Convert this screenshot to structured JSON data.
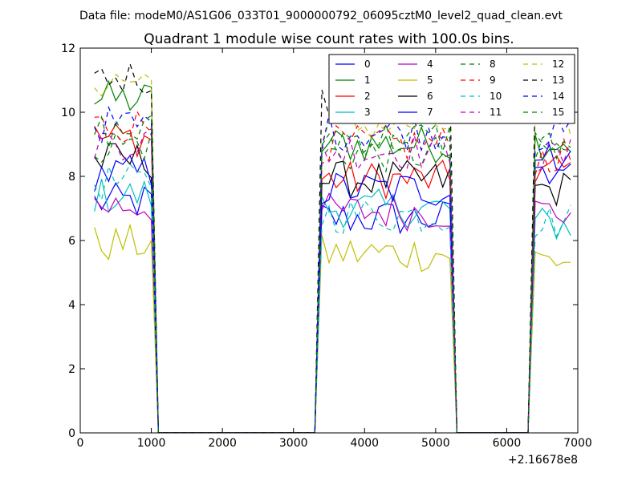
{
  "chart_data": {
    "type": "line",
    "suptitle": "Data file: modeM0/AS1G06_033T01_9000000792_06095cztM0_level2_quad_clean.evt",
    "title": "Quadrant 1 module wise count rates with 100.0s bins.",
    "xlabel": "",
    "ylabel": "",
    "x_offset_label": "+2.16678e8",
    "xlim": [
      0,
      7000
    ],
    "ylim": [
      0,
      12
    ],
    "xticks": [
      0,
      1000,
      2000,
      3000,
      4000,
      5000,
      6000,
      7000
    ],
    "xtick_labels": [
      "0",
      "1000",
      "2000",
      "3000",
      "4000",
      "5000",
      "6000",
      "7000"
    ],
    "yticks": [
      0,
      2,
      4,
      6,
      8,
      10,
      12
    ],
    "ytick_labels": [
      "0",
      "2",
      "4",
      "6",
      "8",
      "10",
      "12"
    ],
    "legend_position": "top-right",
    "segments": [
      {
        "x_start": 200,
        "x_end": 1000
      },
      {
        "x_start": 3400,
        "x_end": 5200
      },
      {
        "x_start": 6400,
        "x_end": 6900
      }
    ],
    "gap_ranges": [
      [
        1200,
        3300
      ],
      [
        5300,
        6300
      ]
    ],
    "series": [
      {
        "name": "0",
        "color": "#0000ff",
        "dashed": false,
        "levels": [
          7.2,
          6.7,
          8.6
        ]
      },
      {
        "name": "1",
        "color": "#008000",
        "dashed": false,
        "levels": [
          10.4,
          9.0,
          9.1
        ]
      },
      {
        "name": "2",
        "color": "#ff0000",
        "dashed": false,
        "levels": [
          9.2,
          7.9,
          8.2
        ]
      },
      {
        "name": "3",
        "color": "#00bfbf",
        "dashed": false,
        "levels": [
          7.4,
          7.0,
          6.5
        ]
      },
      {
        "name": "4",
        "color": "#bf00bf",
        "dashed": false,
        "levels": [
          7.1,
          6.9,
          6.9
        ]
      },
      {
        "name": "5",
        "color": "#bfbf00",
        "dashed": false,
        "levels": [
          5.9,
          5.6,
          5.4
        ]
      },
      {
        "name": "6",
        "color": "#000000",
        "dashed": false,
        "levels": [
          8.5,
          7.9,
          7.6
        ]
      },
      {
        "name": "7",
        "color": "#0000ff",
        "dashed": false,
        "levels": [
          8.1,
          7.6,
          8.3
        ]
      },
      {
        "name": "8",
        "color": "#008000",
        "dashed": true,
        "levels": [
          9.0,
          8.7,
          8.8
        ]
      },
      {
        "name": "9",
        "color": "#ff0000",
        "dashed": true,
        "levels": [
          9.6,
          9.0,
          8.6
        ]
      },
      {
        "name": "10",
        "color": "#00bfbf",
        "dashed": true,
        "levels": [
          7.8,
          6.8,
          6.6
        ]
      },
      {
        "name": "11",
        "color": "#bf00bf",
        "dashed": true,
        "levels": [
          9.1,
          8.8,
          8.6
        ]
      },
      {
        "name": "12",
        "color": "#bfbf00",
        "dashed": true,
        "levels": [
          11.0,
          9.6,
          9.7
        ]
      },
      {
        "name": "13",
        "color": "#000000",
        "dashed": true,
        "levels": [
          11.1,
          10.3,
          10.2
        ]
      },
      {
        "name": "14",
        "color": "#0000ff",
        "dashed": true,
        "levels": [
          9.6,
          9.4,
          9.3
        ]
      },
      {
        "name": "15",
        "color": "#008000",
        "dashed": true,
        "levels": [
          9.4,
          9.2,
          9.0
        ]
      }
    ]
  }
}
